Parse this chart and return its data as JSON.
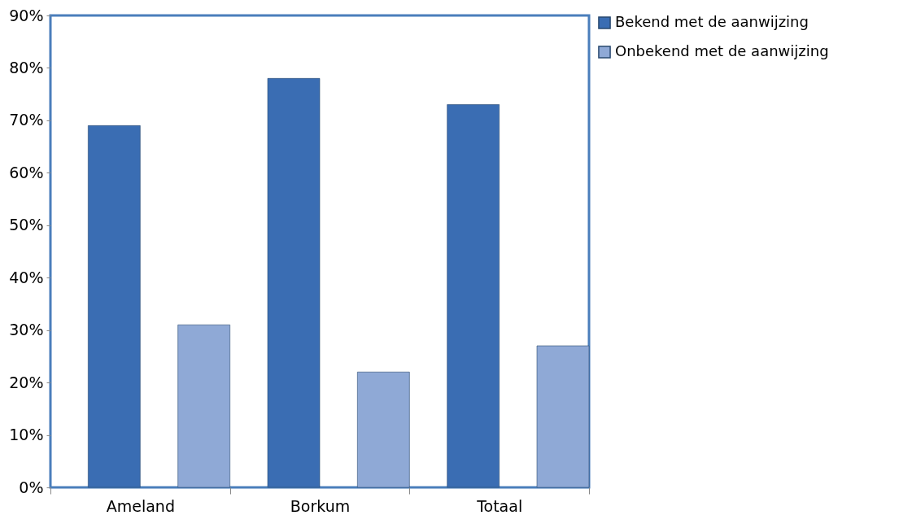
{
  "chart_data": {
    "type": "bar",
    "categories": [
      "Ameland",
      "Borkum",
      "Totaal"
    ],
    "series": [
      {
        "name": "Bekend met de aanwijzing",
        "color": "#3a6db3",
        "values": [
          69,
          78,
          73
        ]
      },
      {
        "name": "Onbekend met de aanwijzing",
        "color": "#8fa9d6",
        "values": [
          31,
          22,
          27
        ]
      }
    ],
    "ylim": [
      0,
      90
    ],
    "yticks": [
      {
        "value": 0,
        "label": "0%"
      },
      {
        "value": 10,
        "label": "10%"
      },
      {
        "value": 20,
        "label": "20%"
      },
      {
        "value": 30,
        "label": "30%"
      },
      {
        "value": 40,
        "label": "40%"
      },
      {
        "value": 50,
        "label": "50%"
      },
      {
        "value": 60,
        "label": "60%"
      },
      {
        "value": 70,
        "label": "70%"
      },
      {
        "value": 80,
        "label": "80%"
      },
      {
        "value": 90,
        "label": "90%"
      }
    ],
    "grid": false,
    "legend": "right"
  }
}
